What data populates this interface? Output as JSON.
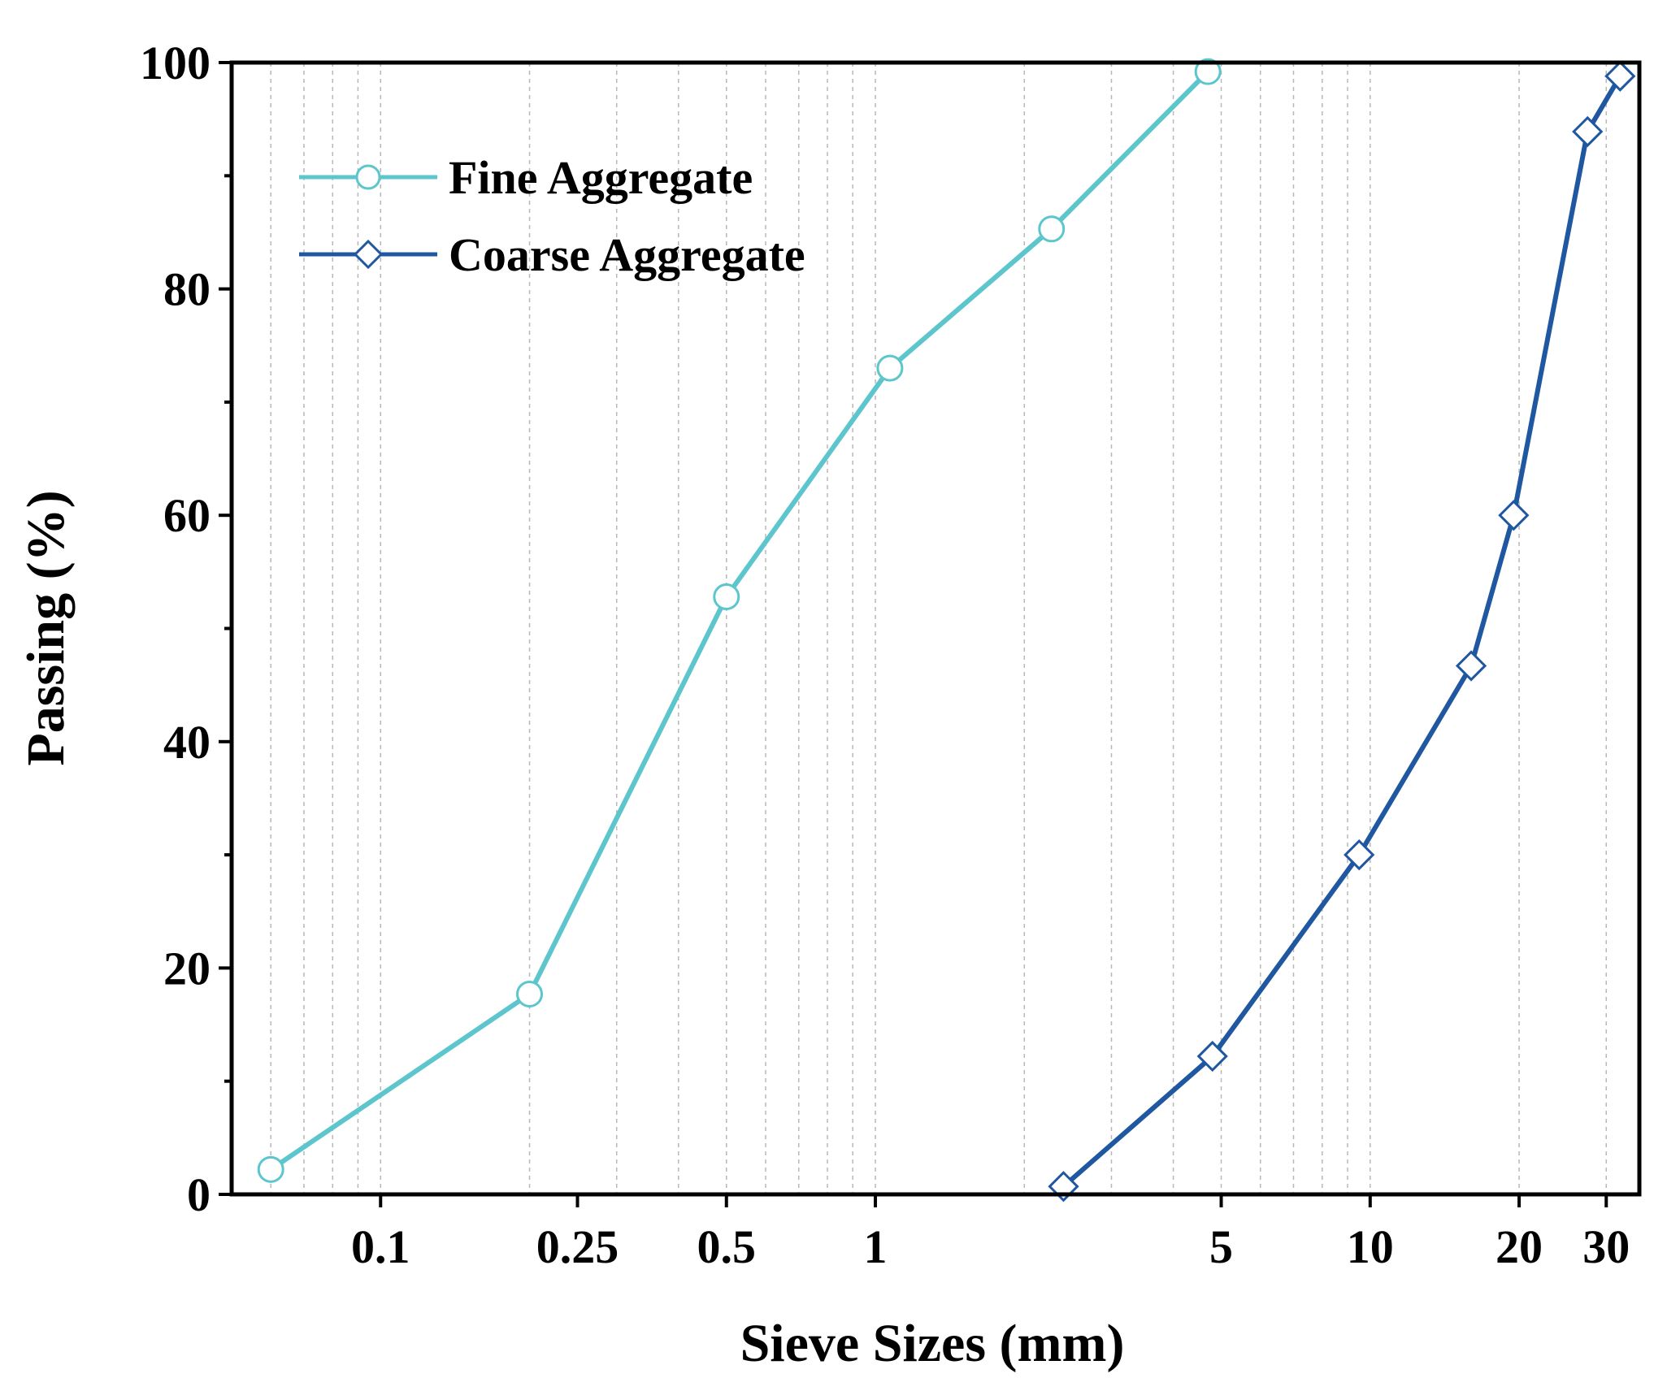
{
  "chart_data": {
    "type": "line",
    "title": "",
    "xlabel": "Sieve Sizes (mm)",
    "ylabel": "Passing (%)",
    "xscale": "log",
    "xlim": [
      0.05,
      35
    ],
    "ylim": [
      0,
      100
    ],
    "grid": "x-minor-dashed",
    "x_ticks": [
      {
        "value": 0.1,
        "label": "0.1"
      },
      {
        "value": 0.25,
        "label": "0.25"
      },
      {
        "value": 0.5,
        "label": "0.5"
      },
      {
        "value": 1,
        "label": "1"
      },
      {
        "value": 5,
        "label": "5"
      },
      {
        "value": 10,
        "label": "10"
      },
      {
        "value": 20,
        "label": "20"
      },
      {
        "value": 30,
        "label": "30"
      }
    ],
    "y_ticks": [
      {
        "value": 0,
        "label": "0"
      },
      {
        "value": 20,
        "label": "20"
      },
      {
        "value": 40,
        "label": "40"
      },
      {
        "value": 60,
        "label": "60"
      },
      {
        "value": 80,
        "label": "80"
      },
      {
        "value": 100,
        "label": "100"
      }
    ],
    "legend_position": "top-left",
    "series": [
      {
        "name": "Fine Aggregate",
        "color": "#5cc6cc",
        "marker": "circle",
        "x": [
          0.06,
          0.2,
          0.5,
          1.07,
          2.27,
          4.7
        ],
        "y": [
          2.2,
          17.7,
          52.8,
          73,
          85.3,
          99.2
        ]
      },
      {
        "name": "Coarse Aggregate",
        "color": "#1f57a0",
        "marker": "diamond",
        "x": [
          2.4,
          4.8,
          9.5,
          16,
          19.5,
          27.5,
          32
        ],
        "y": [
          0.7,
          12.2,
          30,
          46.7,
          60,
          93.9,
          98.8
        ]
      }
    ]
  }
}
